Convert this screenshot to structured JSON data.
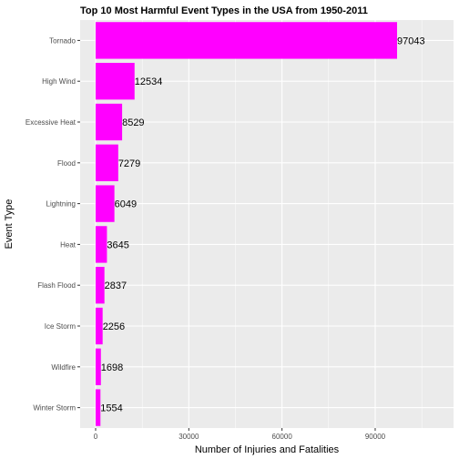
{
  "chart_data": {
    "type": "bar",
    "orientation": "horizontal",
    "title": "Top 10 Most Harmful Event Types in the USA from 1950-2011",
    "xlabel": "Number of Injuries and Fatalities",
    "ylabel": "Event Type",
    "categories": [
      "Tornado",
      "High Wind",
      "Excessive Heat",
      "Flood",
      "Lightning",
      "Heat",
      "Flash Flood",
      "Ice Storm",
      "Wildfire",
      "Winter Storm"
    ],
    "values": [
      97043,
      12534,
      8529,
      7279,
      6049,
      3645,
      2837,
      2256,
      1698,
      1554
    ],
    "data_labels": [
      "97043",
      "12534",
      "8529",
      "7279",
      "6049",
      "3645",
      "2837",
      "2256",
      "1698",
      "1554"
    ],
    "x_ticks": [
      0,
      30000,
      60000,
      90000
    ],
    "x_tick_labels": [
      "0",
      "30000",
      "60000",
      "90000"
    ],
    "xlim": [
      0,
      113000
    ],
    "grid": true,
    "legend": "none",
    "bar_color": "#ff00ff",
    "panel_background": "#ebebeb",
    "grid_color": "#ffffff"
  }
}
